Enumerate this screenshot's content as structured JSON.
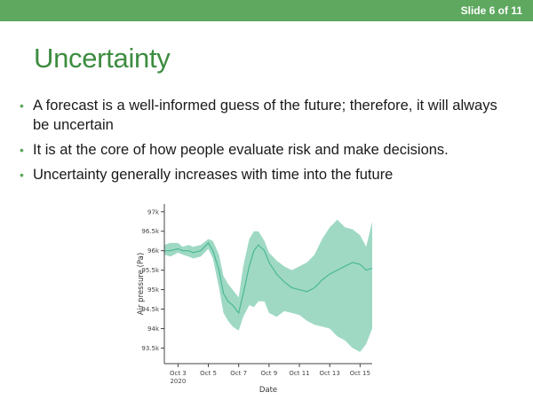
{
  "slide": {
    "counter": "Slide 6 of 11",
    "title": "Uncertainty"
  },
  "bullets": [
    "A forecast is a well-informed guess of the future; therefore, it will always be uncertain",
    "It is at the core of how people evaluate risk and make decisions.",
    "Uncertainty generally increases with time into the future"
  ],
  "colors": {
    "accent": "#5ea85f",
    "title": "#3d8c40",
    "band": "#9fd9c4",
    "line": "#4bb894"
  },
  "chart_data": {
    "type": "area",
    "xlabel": "Date",
    "ylabel": "Air pressure (Pa)",
    "x_tick_labels": [
      "Oct 3",
      "Oct 5",
      "Oct 7",
      "Oct 9",
      "Oct 11",
      "Oct 13",
      "Oct 15"
    ],
    "x_tick_values": [
      3,
      5,
      7,
      9,
      11,
      13,
      15
    ],
    "x_tick_sublabel": "2020",
    "y_tick_labels": [
      "93.5k",
      "94k",
      "94.5k",
      "95k",
      "95.5k",
      "96k",
      "96.5k",
      "97k"
    ],
    "y_tick_values": [
      93500,
      94000,
      94500,
      95000,
      95500,
      96000,
      96500,
      97000
    ],
    "xlim": [
      2.1,
      15.8
    ],
    "ylim": [
      93100,
      97200
    ],
    "grid": false,
    "series": [
      {
        "x": [
          2.1,
          2.5,
          3.0,
          3.3,
          3.7,
          4.0,
          4.5,
          5.0,
          5.3,
          5.7,
          6.0,
          6.3,
          6.6,
          7.0,
          7.3,
          7.7,
          8.0,
          8.3,
          8.7,
          9.0,
          9.5,
          10.0,
          10.5,
          11.0,
          11.5,
          12.0,
          12.5,
          13.0,
          13.5,
          14.0,
          14.5,
          15.0,
          15.4,
          15.8
        ],
        "mean": [
          96000,
          96000,
          96050,
          96000,
          96000,
          95950,
          96000,
          96200,
          96000,
          95500,
          94900,
          94700,
          94600,
          94400,
          94900,
          95600,
          96000,
          96150,
          96000,
          95700,
          95400,
          95200,
          95050,
          95000,
          94950,
          95050,
          95250,
          95400,
          95500,
          95600,
          95700,
          95650,
          95500,
          95550
        ],
        "upper": [
          96150,
          96200,
          96200,
          96100,
          96150,
          96100,
          96150,
          96300,
          96250,
          95900,
          95350,
          95150,
          95000,
          94800,
          95600,
          96300,
          96500,
          96500,
          96250,
          95950,
          95750,
          95600,
          95500,
          95600,
          95700,
          95900,
          96300,
          96600,
          96800,
          96600,
          96550,
          96400,
          96100,
          96750
        ],
        "lower": [
          95900,
          95850,
          95950,
          95900,
          95850,
          95800,
          95850,
          96050,
          95800,
          95050,
          94400,
          94200,
          94050,
          93950,
          94300,
          94600,
          94550,
          94700,
          94700,
          94400,
          94300,
          94450,
          94400,
          94350,
          94200,
          94100,
          94050,
          94000,
          93800,
          93700,
          93500,
          93400,
          93600,
          94000
        ]
      }
    ]
  }
}
